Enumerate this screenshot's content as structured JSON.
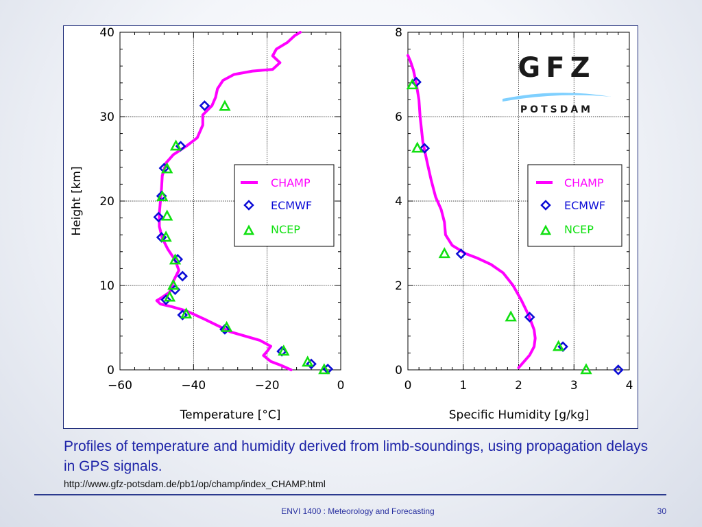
{
  "caption": {
    "text": "Profiles of temperature and humidity derived from limb-soundings, using propagation delays in GPS signals.",
    "url": "http://www.gfz-potsdam.de/pb1/op/champ/index_CHAMP.html"
  },
  "footer": {
    "course": "ENVI 1400 : Meteorology and Forecasting",
    "page_number": "30"
  },
  "logo": {
    "text": "GFZ",
    "subtitle": "POTSDAM",
    "colors": {
      "text": "#1a1a1a",
      "swoosh": "#7fd0ff"
    }
  },
  "colors": {
    "champ": "#ff00ff",
    "ecmwf": "#0b0bd6",
    "ncep": "#11e011"
  },
  "chart_data": [
    {
      "type": "line",
      "xlabel": "Temperature [°C]",
      "ylabel": "Height [km]",
      "xlim": [
        -60,
        0
      ],
      "ylim": [
        0,
        40
      ],
      "xticks": [
        "−60",
        "−40",
        "−20",
        "0"
      ],
      "yticks": [
        "0",
        "10",
        "20",
        "30",
        "40"
      ],
      "grid": true,
      "legend": {
        "position": "right",
        "entries": [
          "CHAMP",
          "ECMWF",
          "NCEP"
        ]
      },
      "series": [
        {
          "name": "CHAMP",
          "style": "line",
          "points": [
            [
              -13.5,
              0
            ],
            [
              -16,
              0.5
            ],
            [
              -19,
              1
            ],
            [
              -21,
              1.7
            ],
            [
              -20,
              2.2
            ],
            [
              -19,
              2.8
            ],
            [
              -22,
              3.5
            ],
            [
              -30,
              4.5
            ],
            [
              -37,
              6
            ],
            [
              -42,
              7
            ],
            [
              -46,
              7.5
            ],
            [
              -49,
              7.8
            ],
            [
              -50,
              8.2
            ],
            [
              -48.5,
              8.6
            ],
            [
              -46.5,
              9.2
            ],
            [
              -45.5,
              10.5
            ],
            [
              -44,
              11.8
            ],
            [
              -45,
              13
            ],
            [
              -47,
              14.3
            ],
            [
              -48.5,
              15.6
            ],
            [
              -49.3,
              17
            ],
            [
              -49.3,
              18.5
            ],
            [
              -49,
              20
            ],
            [
              -48.7,
              21.5
            ],
            [
              -48.5,
              23
            ],
            [
              -47.5,
              24.5
            ],
            [
              -45.5,
              25.5
            ],
            [
              -42,
              26.5
            ],
            [
              -39,
              27.5
            ],
            [
              -37.5,
              29
            ],
            [
              -37.5,
              30.2
            ],
            [
              -35,
              31.3
            ],
            [
              -34,
              32.3
            ],
            [
              -33.5,
              33.3
            ],
            [
              -32,
              34.3
            ],
            [
              -29,
              35
            ],
            [
              -24,
              35.4
            ],
            [
              -18.5,
              35.6
            ],
            [
              -16.5,
              36.4
            ],
            [
              -18.5,
              37.2
            ],
            [
              -17.5,
              38
            ],
            [
              -14.5,
              38.8
            ],
            [
              -12.5,
              39.6
            ],
            [
              -11,
              40
            ]
          ]
        },
        {
          "name": "ECMWF",
          "style": "diamond",
          "points": [
            [
              -3.5,
              0.1
            ],
            [
              -8,
              0.7
            ],
            [
              -16,
              2.2
            ],
            [
              -31.5,
              4.8
            ],
            [
              -43,
              6.5
            ],
            [
              -47.5,
              8.3
            ],
            [
              -45,
              9.5
            ],
            [
              -43,
              11.1
            ],
            [
              -44.3,
              13.1
            ],
            [
              -48.7,
              15.7
            ],
            [
              -49.5,
              18.1
            ],
            [
              -48.7,
              20.6
            ],
            [
              -48,
              23.9
            ],
            [
              -43.5,
              26.5
            ],
            [
              -37,
              31.3
            ]
          ]
        },
        {
          "name": "NCEP",
          "style": "triangle",
          "points": [
            [
              -4.5,
              0
            ],
            [
              -9,
              0.9
            ],
            [
              -15.5,
              2.2
            ],
            [
              -31,
              5
            ],
            [
              -42,
              6.6
            ],
            [
              -46.5,
              8.6
            ],
            [
              -45.5,
              10
            ],
            [
              -45,
              13
            ],
            [
              -47.5,
              15.7
            ],
            [
              -47.2,
              18.2
            ],
            [
              -48.5,
              20.5
            ],
            [
              -47.2,
              23.8
            ],
            [
              -44.8,
              26.5
            ],
            [
              -31.5,
              31.2
            ]
          ]
        }
      ]
    },
    {
      "type": "line",
      "xlabel": "Specific Humidity [g/kg]",
      "ylabel": "",
      "xlim": [
        0,
        4
      ],
      "ylim": [
        0,
        8
      ],
      "xticks": [
        "0",
        "1",
        "2",
        "3",
        "4"
      ],
      "yticks": [
        "0",
        "2",
        "4",
        "6",
        "8"
      ],
      "grid": true,
      "legend": {
        "position": "right",
        "entries": [
          "CHAMP",
          "ECMWF",
          "NCEP"
        ]
      },
      "series": [
        {
          "name": "CHAMP",
          "style": "line",
          "points": [
            [
              2.0,
              0.05
            ],
            [
              2.1,
              0.2
            ],
            [
              2.2,
              0.35
            ],
            [
              2.28,
              0.55
            ],
            [
              2.3,
              0.75
            ],
            [
              2.28,
              0.95
            ],
            [
              2.18,
              1.3
            ],
            [
              2.05,
              1.65
            ],
            [
              1.9,
              2.0
            ],
            [
              1.72,
              2.3
            ],
            [
              1.5,
              2.5
            ],
            [
              1.25,
              2.65
            ],
            [
              1.05,
              2.75
            ],
            [
              0.8,
              2.95
            ],
            [
              0.68,
              3.2
            ],
            [
              0.66,
              3.5
            ],
            [
              0.6,
              3.8
            ],
            [
              0.5,
              4.1
            ],
            [
              0.42,
              4.5
            ],
            [
              0.35,
              4.9
            ],
            [
              0.27,
              5.4
            ],
            [
              0.22,
              6.0
            ],
            [
              0.2,
              6.4
            ],
            [
              0.15,
              6.8
            ],
            [
              0.1,
              7.1
            ],
            [
              0.05,
              7.3
            ],
            [
              0.0,
              7.45
            ]
          ]
        },
        {
          "name": "ECMWF",
          "style": "diamond",
          "points": [
            [
              3.8,
              0.0
            ],
            [
              2.8,
              0.55
            ],
            [
              2.2,
              1.25
            ],
            [
              0.96,
              2.75
            ],
            [
              0.3,
              5.25
            ],
            [
              0.15,
              6.82
            ]
          ]
        },
        {
          "name": "NCEP",
          "style": "triangle",
          "points": [
            [
              3.22,
              0.0
            ],
            [
              2.72,
              0.55
            ],
            [
              1.86,
              1.25
            ],
            [
              0.66,
              2.75
            ],
            [
              0.17,
              5.25
            ],
            [
              0.08,
              6.75
            ]
          ]
        }
      ]
    }
  ]
}
